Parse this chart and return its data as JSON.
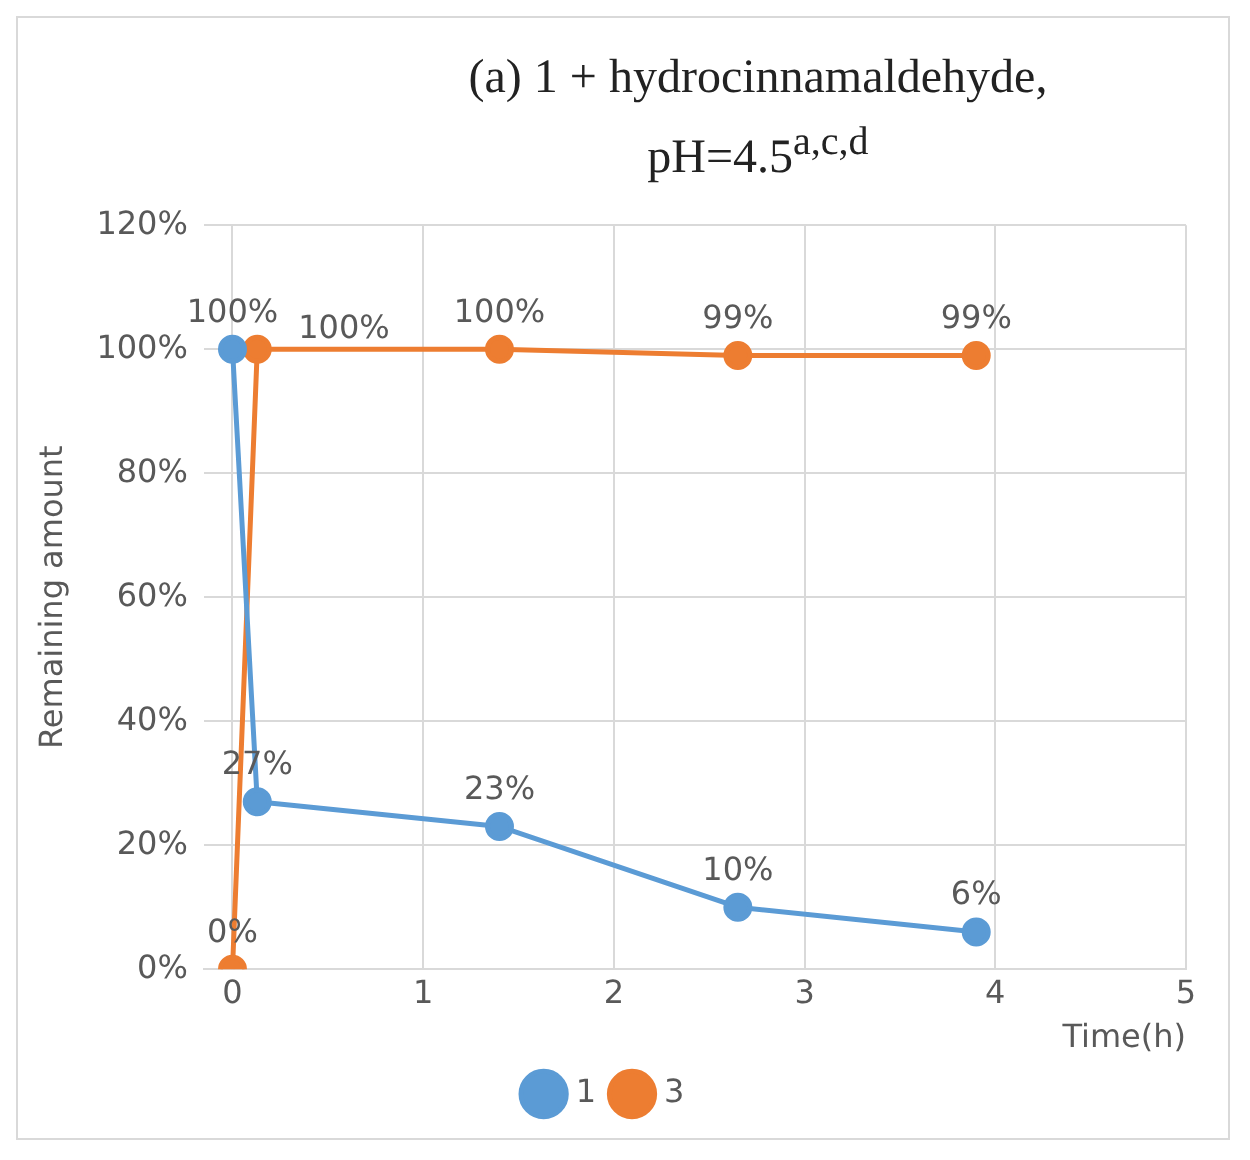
{
  "chart_data": {
    "type": "line",
    "title": "(a) 1 + hydrocinnamaldehyde, pH=4.5$^{a,c,d}$",
    "xlabel": "Time(h)",
    "ylabel": "Remaining amount",
    "xlim": [
      -0.15,
      5
    ],
    "xticks": [
      0,
      1,
      2,
      3,
      4,
      5
    ],
    "ylim": [
      0,
      120
    ],
    "yticks": [
      {
        "value": 0,
        "label": "0%"
      },
      {
        "value": 20,
        "label": "20%"
      },
      {
        "value": 40,
        "label": "40%"
      },
      {
        "value": 60,
        "label": "60%"
      },
      {
        "value": 80,
        "label": "80%"
      },
      {
        "value": 100,
        "label": "100%"
      },
      {
        "value": 120,
        "label": "120%"
      }
    ],
    "grid": true,
    "legend": "bottom",
    "marker": "circle",
    "line_style": "solid",
    "series": [
      {
        "name": "1",
        "color": "#5b9bd5",
        "x": [
          0,
          0.13,
          1.4,
          2.65,
          3.9
        ],
        "values": [
          100,
          27,
          23,
          10,
          6
        ],
        "value_labels": [
          "100%",
          "27%",
          "23%",
          "10%",
          "6%"
        ]
      },
      {
        "name": "3",
        "color": "#ed7d31",
        "x": [
          0,
          0.13,
          1.4,
          2.65,
          3.9
        ],
        "values": [
          0,
          100,
          100,
          99,
          99
        ],
        "value_labels": [
          "0%",
          "100%",
          "100%",
          "99%",
          "99%"
        ]
      }
    ]
  }
}
